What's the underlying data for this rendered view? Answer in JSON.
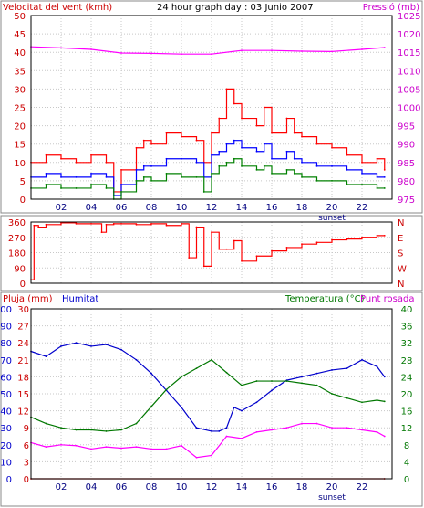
{
  "chart_data": [
    {
      "type": "line",
      "title": "24 hour graph day : 03 Junio 2007",
      "left_axis_label": "Velocitat del vent (kmh)",
      "right_axis_label": "Pressió (mb)",
      "x_ticks": [
        "02",
        "04",
        "06",
        "08",
        "10",
        "12",
        "14",
        "16",
        "18",
        "20",
        "22"
      ],
      "sunset_label": "sunset",
      "y_left_ticks": [
        0,
        5,
        10,
        15,
        20,
        25,
        30,
        35,
        40,
        45,
        50
      ],
      "y_right_ticks": [
        975,
        980,
        985,
        990,
        995,
        1000,
        1005,
        1010,
        1015,
        1020,
        1025
      ],
      "ylim_left": [
        0,
        50
      ],
      "ylim_right": [
        975,
        1025
      ],
      "series": [
        {
          "name": "wind_gust",
          "color": "#ff0000",
          "x": [
            0,
            1,
            2,
            3,
            4,
            5,
            5.5,
            6,
            7,
            7.5,
            8,
            9,
            10,
            11,
            11.5,
            12,
            12.5,
            13,
            13.5,
            14,
            15,
            15.5,
            16,
            17,
            17.5,
            18,
            19,
            20,
            21,
            22,
            23,
            23.5
          ],
          "values": [
            10,
            12,
            11,
            10,
            12,
            10,
            2,
            8,
            14,
            16,
            15,
            18,
            17,
            16,
            10,
            18,
            22,
            30,
            26,
            22,
            20,
            25,
            18,
            22,
            18,
            17,
            15,
            14,
            12,
            10,
            11,
            8
          ]
        },
        {
          "name": "wind_avg",
          "color": "#0000ff",
          "x": [
            0,
            1,
            2,
            3,
            4,
            5,
            5.5,
            6,
            7,
            7.5,
            8,
            9,
            10,
            11,
            11.5,
            12,
            12.5,
            13,
            13.5,
            14,
            15,
            15.5,
            16,
            17,
            17.5,
            18,
            19,
            20,
            21,
            22,
            23,
            23.5
          ],
          "values": [
            6,
            7,
            6,
            6,
            7,
            6,
            1,
            4,
            8,
            9,
            9,
            11,
            11,
            10,
            6,
            12,
            13,
            15,
            16,
            14,
            13,
            15,
            11,
            13,
            11,
            10,
            9,
            9,
            8,
            7,
            6,
            6
          ]
        },
        {
          "name": "wind_min",
          "color": "#008000",
          "x": [
            0,
            1,
            2,
            3,
            4,
            5,
            5.5,
            6,
            7,
            7.5,
            8,
            9,
            10,
            11,
            11.5,
            12,
            12.5,
            13,
            13.5,
            14,
            15,
            15.5,
            16,
            17,
            17.5,
            18,
            19,
            20,
            21,
            22,
            23,
            23.5
          ],
          "values": [
            3,
            4,
            3,
            3,
            4,
            3,
            0,
            2,
            5,
            6,
            5,
            7,
            6,
            6,
            2,
            7,
            9,
            10,
            11,
            9,
            8,
            9,
            7,
            8,
            7,
            6,
            5,
            5,
            4,
            4,
            3,
            3
          ]
        },
        {
          "name": "pressure",
          "axis": "right",
          "color": "#ff00ff",
          "x": [
            0,
            2,
            4,
            6,
            8,
            10,
            12,
            14,
            16,
            18,
            20,
            22,
            23.5
          ],
          "values": [
            1016.5,
            1016.2,
            1015.8,
            1014.8,
            1014.7,
            1014.5,
            1014.5,
            1015.5,
            1015.5,
            1015.3,
            1015.2,
            1015.8,
            1016.3
          ]
        }
      ]
    },
    {
      "type": "line",
      "left_ticks": [
        0,
        90,
        180,
        270,
        360
      ],
      "right_ticks": [
        "N",
        "W",
        "S",
        "E",
        "N"
      ],
      "ylim": [
        0,
        360
      ],
      "series": [
        {
          "name": "wind_direction",
          "color": "#ff0000",
          "x": [
            0,
            0.2,
            0.5,
            1,
            2,
            3,
            4,
            4.7,
            5,
            5.5,
            6,
            7,
            8,
            9,
            10,
            10.5,
            11,
            11.5,
            12,
            12.5,
            13,
            13.5,
            14,
            15,
            16,
            17,
            18,
            19,
            20,
            21,
            22,
            23,
            23.5
          ],
          "values": [
            20,
            340,
            330,
            345,
            355,
            350,
            350,
            300,
            345,
            350,
            350,
            345,
            350,
            340,
            350,
            150,
            330,
            100,
            300,
            200,
            200,
            250,
            130,
            160,
            190,
            210,
            230,
            240,
            255,
            260,
            270,
            280,
            280
          ]
        }
      ]
    },
    {
      "type": "line",
      "left_label_1": "Pluja (mm)",
      "left_label_2": "Humitat",
      "right_label_1": "Temperatura (°C)",
      "right_label_2": "Punt rosada",
      "x_ticks": [
        "02",
        "04",
        "06",
        "08",
        "10",
        "12",
        "14",
        "16",
        "18",
        "20",
        "22"
      ],
      "sunset_label": "sunset",
      "rain_ticks": [
        0,
        3,
        6,
        9,
        12,
        15,
        18,
        21,
        24,
        27,
        30
      ],
      "humidity_ticks": [
        0,
        10,
        20,
        30,
        40,
        50,
        60,
        70,
        80,
        90,
        100
      ],
      "temp_ticks": [
        0,
        4,
        8,
        12,
        16,
        20,
        24,
        28,
        32,
        36,
        40
      ],
      "series": [
        {
          "name": "humidity",
          "axis": "humidity",
          "color": "#0000cc",
          "ylim": [
            0,
            100
          ],
          "x": [
            0,
            1,
            2,
            3,
            4,
            5,
            6,
            7,
            8,
            9,
            10,
            11,
            12,
            12.5,
            13,
            13.5,
            14,
            15,
            16,
            17,
            18,
            19,
            20,
            21,
            22,
            23,
            23.5
          ],
          "values": [
            75,
            72,
            78,
            80,
            78,
            79,
            76,
            70,
            62,
            52,
            42,
            30,
            28,
            28,
            30,
            42,
            40,
            45,
            52,
            58,
            60,
            62,
            64,
            65,
            70,
            66,
            60
          ]
        },
        {
          "name": "temperature",
          "axis": "temp",
          "color": "#007700",
          "ylim": [
            0,
            40
          ],
          "x": [
            0,
            1,
            2,
            3,
            4,
            5,
            6,
            7,
            8,
            9,
            10,
            11,
            12,
            13,
            14,
            15,
            16,
            17,
            18,
            19,
            20,
            21,
            22,
            23,
            23.5
          ],
          "values": [
            14.5,
            13,
            12,
            11.5,
            11.5,
            11.2,
            11.5,
            13,
            17,
            21,
            24,
            26,
            28,
            25,
            22,
            23,
            23,
            23,
            22.5,
            22,
            20,
            19,
            18,
            18.5,
            18.2
          ]
        },
        {
          "name": "dew_point",
          "axis": "temp",
          "color": "#ff00ff",
          "ylim": [
            0,
            40
          ],
          "x": [
            0,
            1,
            2,
            3,
            4,
            5,
            6,
            7,
            8,
            9,
            10,
            11,
            12,
            13,
            14,
            15,
            16,
            17,
            18,
            19,
            20,
            21,
            22,
            23,
            23.5
          ],
          "values": [
            8.5,
            7.5,
            8,
            7.8,
            7,
            7.5,
            7.2,
            7.5,
            7,
            7,
            7.8,
            5,
            5.5,
            10,
            9.5,
            11,
            11.5,
            12,
            13,
            13,
            12,
            12,
            11.5,
            11,
            10
          ]
        },
        {
          "name": "rain",
          "axis": "rain",
          "color": "#cc0000",
          "ylim": [
            0,
            30
          ],
          "x": [
            0,
            23.5
          ],
          "values": [
            0,
            0
          ]
        }
      ]
    }
  ]
}
